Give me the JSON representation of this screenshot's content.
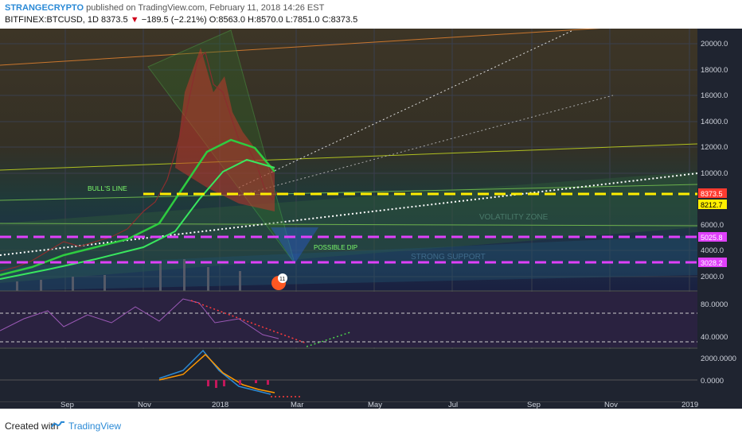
{
  "header": {
    "author": "STRANGECRYPTO",
    "published_text": " published on TradingView.com, February 11, 2018 14:26 EST",
    "symbol": "BITFINEX:BTCUSD, 1D",
    "last_price": "8373.5",
    "change": "−189.5 (−2.21%)",
    "ohlc": "O:8563.0 H:8570.0 L:7851.0 C:8373.5"
  },
  "price_axis": {
    "labels": [
      "20000.0",
      "18000.0",
      "16000.0",
      "14000.0",
      "12000.0",
      "10000.0",
      "6000.0",
      "4000.0",
      "2000.0"
    ]
  },
  "price_tags": [
    {
      "text": "8373.5",
      "bg": "#ff3b30",
      "fg": "#ffffff"
    },
    {
      "text": "8212.7",
      "bg": "#ffee00",
      "fg": "#000000"
    },
    {
      "text": "5025.8",
      "bg": "#e040fb",
      "fg": "#ffffff"
    },
    {
      "text": "3028.2",
      "bg": "#e040fb",
      "fg": "#ffffff"
    }
  ],
  "rsi_axis": {
    "labels": [
      "80.0000",
      "40.0000"
    ]
  },
  "macd_axis": {
    "labels": [
      "2000.0000",
      "0.0000"
    ]
  },
  "time_axis": {
    "labels": [
      "Sep",
      "Nov",
      "2018",
      "Mar",
      "May",
      "Jul",
      "Sep",
      "Nov",
      "2019"
    ]
  },
  "annotations": {
    "bulls_line": "BULL'S LINE",
    "possible_dip": "POSSIBLE DIP",
    "volatility_zone": "VOLATILITY ZONE",
    "strong_support": "STRONG SUPPORT"
  },
  "event_badge": "11",
  "footer": {
    "created_with": "Created with",
    "brand": "TradingView"
  },
  "colors": {
    "background": "#1f2430",
    "accent_blue": "#2b8ad6",
    "down_red": "#d0021b",
    "support_magenta": "#e040fb",
    "current_yellow": "#ffee00"
  }
}
